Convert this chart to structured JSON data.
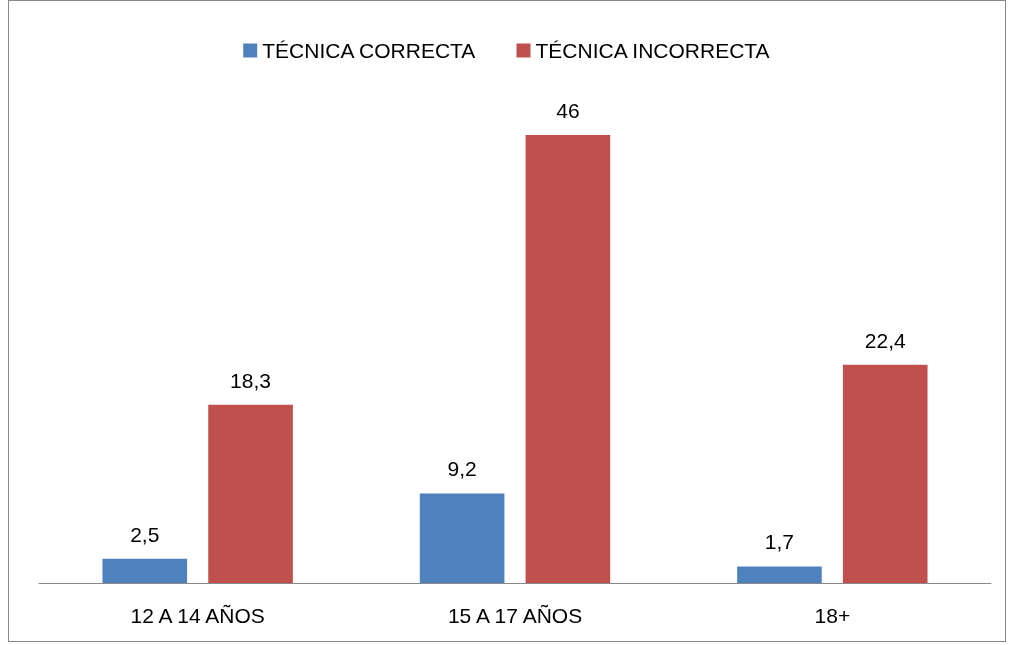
{
  "chart_data": {
    "type": "bar",
    "categories": [
      "12 A 14 AÑOS",
      "15 A 17 AÑOS",
      "18+"
    ],
    "series": [
      {
        "name": "TÉCNICA CORRECTA",
        "color": "#4f81bd",
        "values": [
          2.5,
          9.2,
          1.7
        ],
        "value_labels": [
          "2,5",
          "9,2",
          "1,7"
        ]
      },
      {
        "name": "TÉCNICA INCORRECTA",
        "color": "#c0504d",
        "values": [
          18.3,
          46,
          22.4
        ],
        "value_labels": [
          "18,3",
          "46",
          "22,4"
        ]
      }
    ],
    "legend": "top",
    "grid": false
  }
}
